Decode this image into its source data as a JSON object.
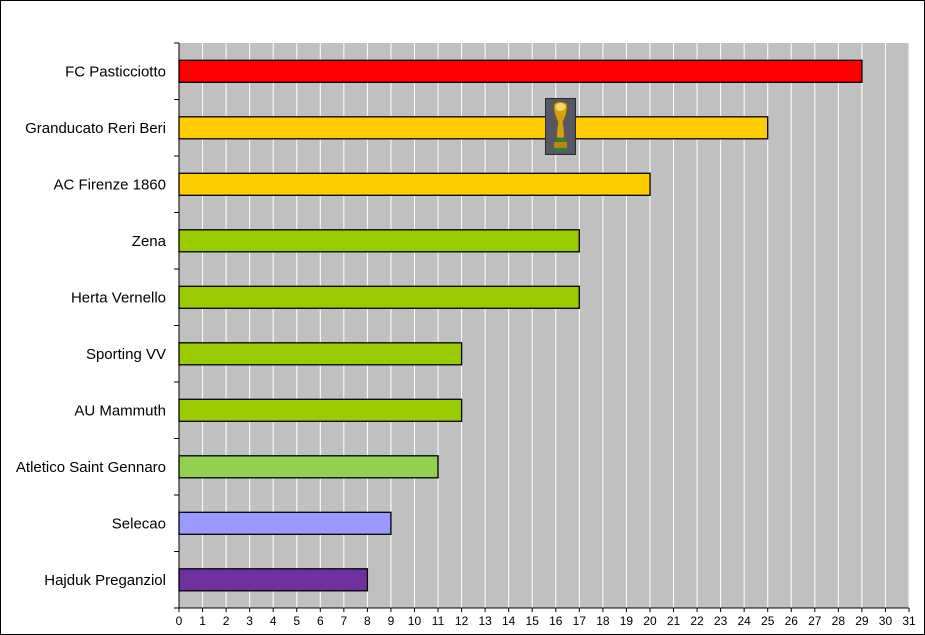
{
  "chart_data": {
    "type": "bar",
    "orientation": "horizontal",
    "categories": [
      "FC Pasticciotto",
      "Granducato Reri Beri",
      "AC Firenze 1860",
      "Zena",
      "Herta Vernello",
      "Sporting VV",
      "AU Mammuth",
      "Atletico Saint Gennaro",
      "Selecao",
      "Hajduk Preganziol"
    ],
    "values": [
      29,
      25,
      20,
      17,
      17,
      12,
      12,
      11,
      9,
      8
    ],
    "bar_colors": [
      "#ff0000",
      "#ffcc00",
      "#ffcc00",
      "#99cc00",
      "#99cc00",
      "#99cc00",
      "#99cc00",
      "#92d050",
      "#9999ff",
      "#7030a0"
    ],
    "xlim": [
      0,
      31
    ],
    "xticks": [
      0,
      1,
      2,
      3,
      4,
      5,
      6,
      7,
      8,
      9,
      10,
      11,
      12,
      13,
      14,
      15,
      16,
      17,
      18,
      19,
      20,
      21,
      22,
      23,
      24,
      25,
      26,
      27,
      28,
      29,
      30,
      31
    ],
    "xlabel": "",
    "ylabel": "",
    "title": "",
    "grid": "vertical",
    "plot_background": "#c0c0c0",
    "legend": "none",
    "trophy_icon": "trophy-icon"
  }
}
